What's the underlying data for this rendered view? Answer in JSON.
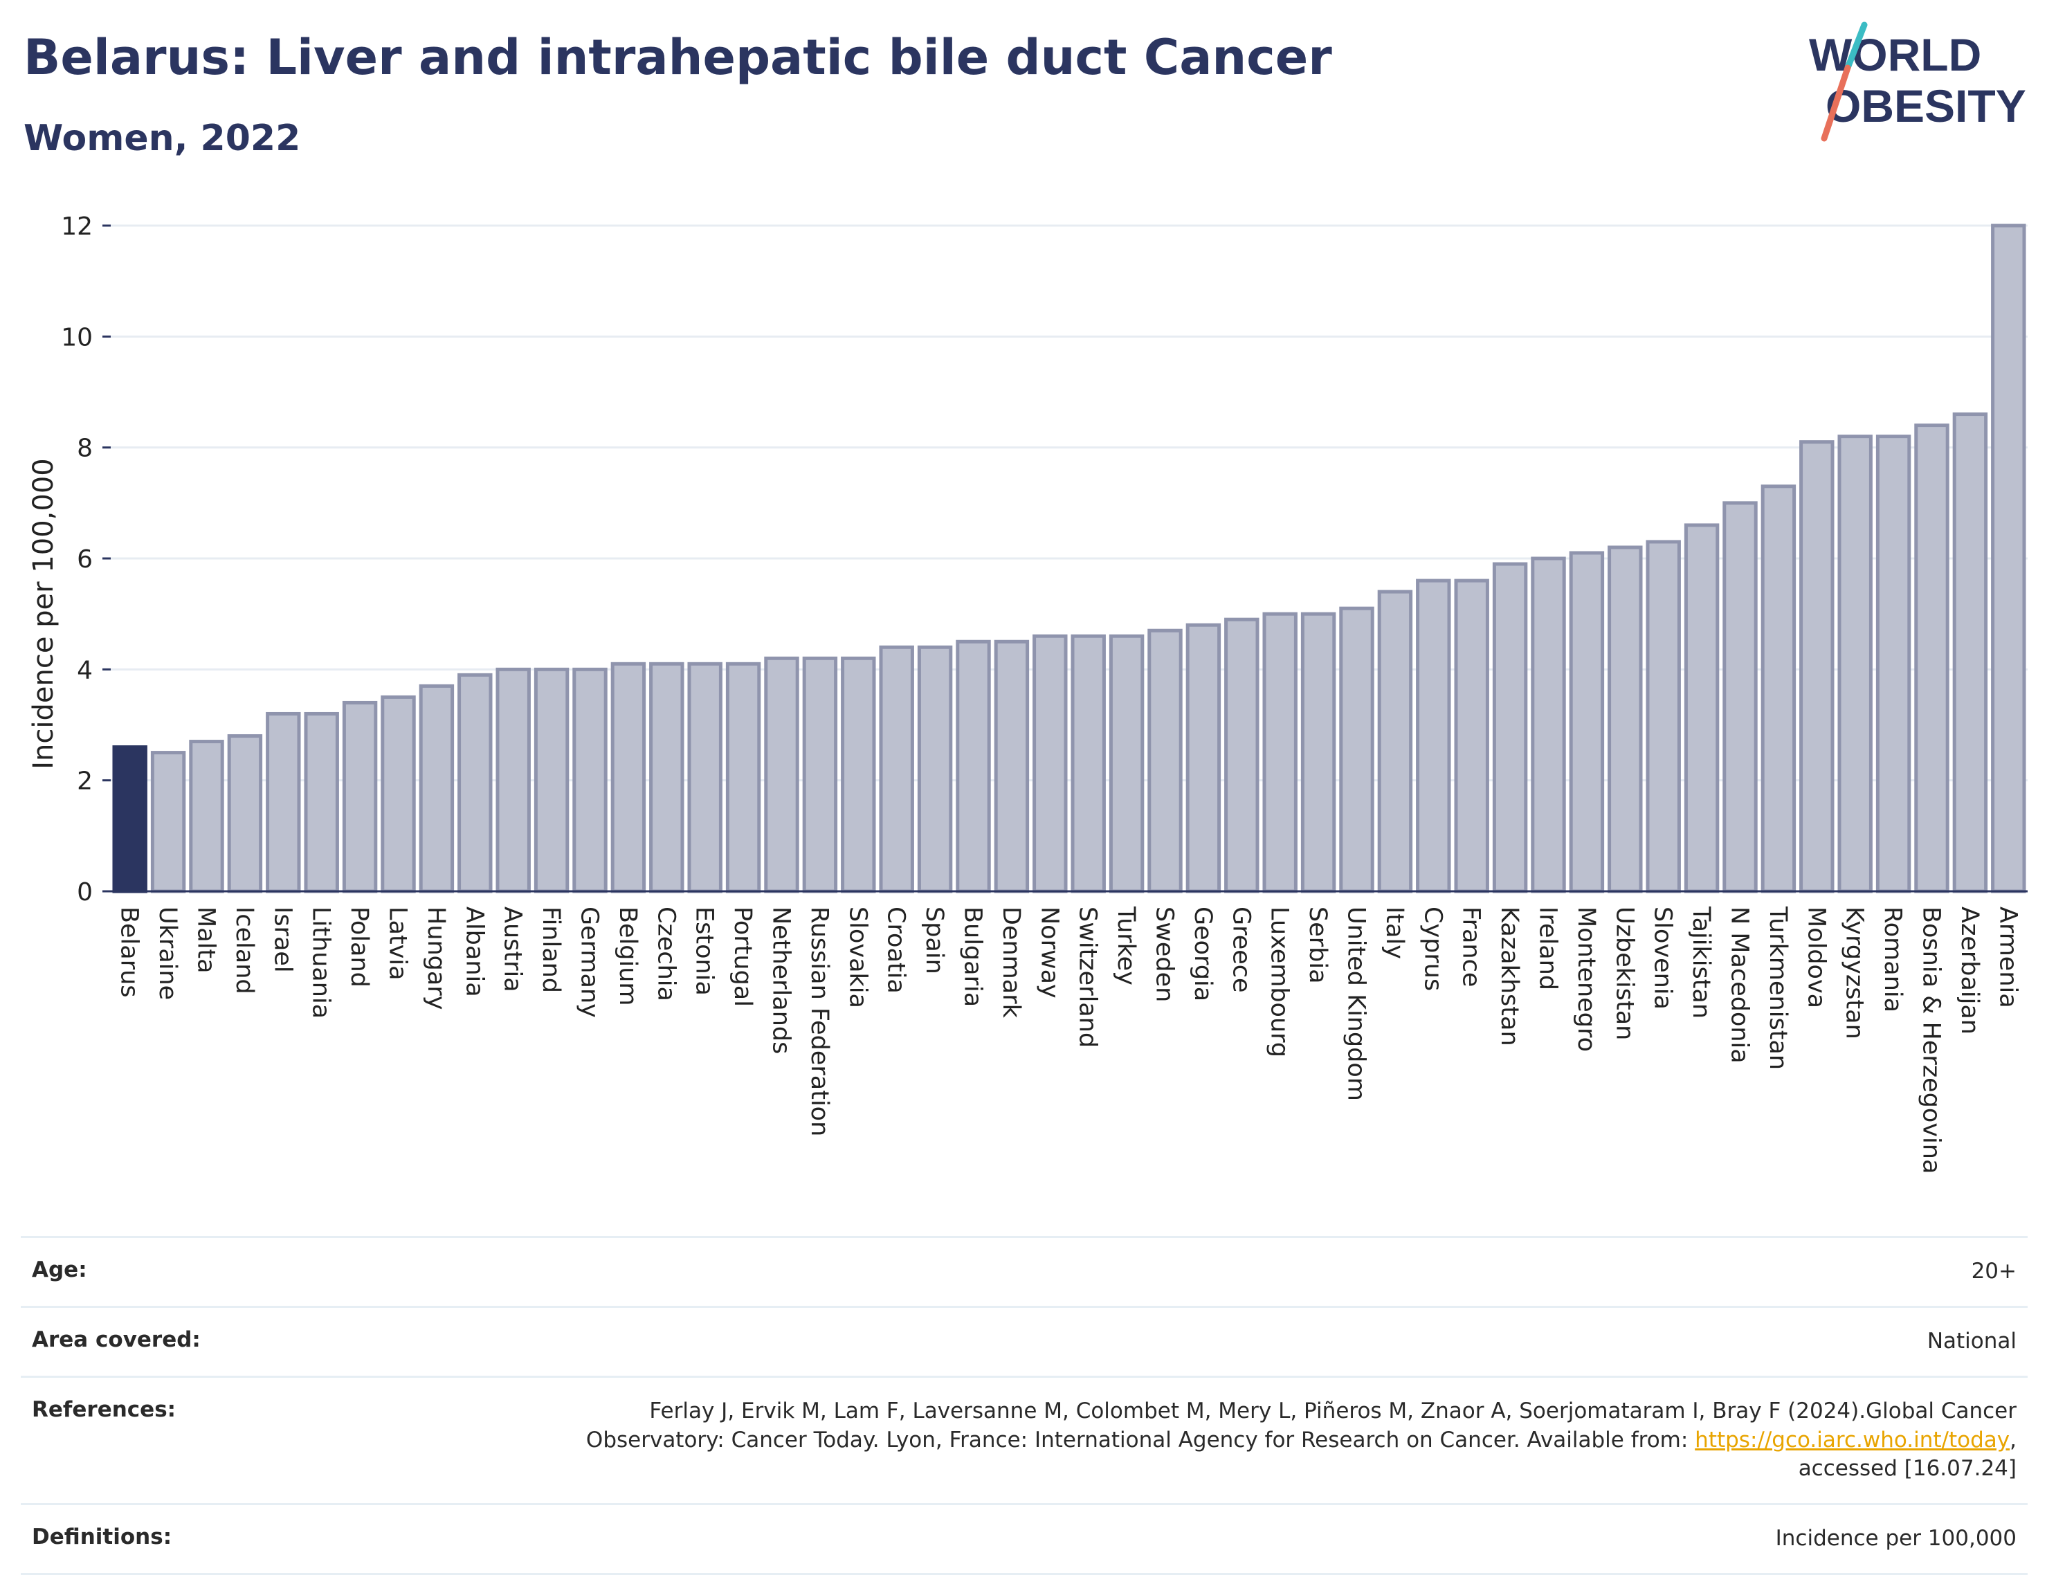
{
  "header": {
    "title": "Belarus: Liver and intrahepatic bile duct Cancer",
    "subtitle": "Women, 2022"
  },
  "logo": {
    "line1": "WORLD",
    "line2": "OBESITY"
  },
  "colors": {
    "highlight": "#2b3560",
    "bar": "#bcc0cf",
    "bar_border": "#8f94ad",
    "title": "#2b3560",
    "link": "#e8a400"
  },
  "chart_data": {
    "type": "bar",
    "ylabel": "Incidence per 100,000",
    "ylim": [
      0,
      12
    ],
    "yticks": [
      0,
      2,
      4,
      6,
      8,
      10,
      12
    ],
    "highlight": "Belarus",
    "categories": [
      "Belarus",
      "Ukraine",
      "Malta",
      "Iceland",
      "Israel",
      "Lithuania",
      "Poland",
      "Latvia",
      "Hungary",
      "Albania",
      "Austria",
      "Finland",
      "Germany",
      "Belgium",
      "Czechia",
      "Estonia",
      "Portugal",
      "Netherlands",
      "Russian Federation",
      "Slovakia",
      "Croatia",
      "Spain",
      "Bulgaria",
      "Denmark",
      "Norway",
      "Switzerland",
      "Turkey",
      "Sweden",
      "Georgia",
      "Greece",
      "Luxembourg",
      "Serbia",
      "United Kingdom",
      "Italy",
      "Cyprus",
      "France",
      "Kazakhstan",
      "Ireland",
      "Montenegro",
      "Uzbekistan",
      "Slovenia",
      "Tajikistan",
      "N Macedonia",
      "Turkmenistan",
      "Moldova",
      "Kyrgyzstan",
      "Romania",
      "Bosnia & Herzegovina",
      "Azerbaijan",
      "Armenia"
    ],
    "values": [
      2.6,
      2.5,
      2.7,
      2.8,
      3.2,
      3.2,
      3.4,
      3.5,
      3.7,
      3.9,
      4.0,
      4.0,
      4.0,
      4.1,
      4.1,
      4.1,
      4.1,
      4.2,
      4.2,
      4.2,
      4.4,
      4.4,
      4.5,
      4.5,
      4.6,
      4.6,
      4.6,
      4.7,
      4.8,
      4.9,
      5.0,
      5.0,
      5.1,
      5.4,
      5.6,
      5.6,
      5.9,
      6.0,
      6.1,
      6.2,
      6.3,
      6.6,
      7.0,
      7.3,
      8.1,
      8.2,
      8.2,
      8.4,
      8.6,
      12.0
    ],
    "grid": true,
    "legend": "none"
  },
  "meta": {
    "age_label": "Age:",
    "age_value": "20+",
    "area_label": "Area covered:",
    "area_value": "National",
    "ref_label": "References:",
    "ref_text1": "Ferlay J, Ervik M, Lam F, Laversanne M, Colombet M, Mery L, Piñeros M, Znaor A, Soerjomataram I, Bray F (2024).Global Cancer Observatory: Cancer Today. Lyon, France: International Agency for Research on Cancer. Available from: ",
    "ref_link": "https://gco.iarc.who.int/today",
    "ref_text2": ", accessed [16.07.24]",
    "def_label": "Definitions:",
    "def_value": "Incidence per 100,000"
  }
}
